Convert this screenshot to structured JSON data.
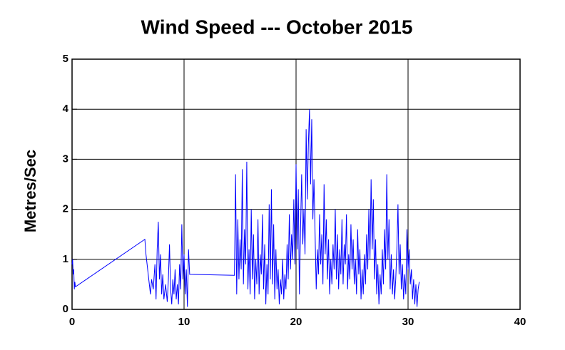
{
  "chart_data": {
    "type": "line",
    "title": "Wind Speed --- October 2015",
    "y_label": "Metres/Sec",
    "x": [
      0,
      0.05,
      0.1,
      0.15,
      0.2,
      0.25,
      0.3,
      6.5,
      6.6,
      6.75,
      6.9,
      7.0,
      7.1,
      7.25,
      7.4,
      7.5,
      7.6,
      7.7,
      7.8,
      7.9,
      8.0,
      8.1,
      8.2,
      8.35,
      8.5,
      8.6,
      8.7,
      8.8,
      8.9,
      9.0,
      9.1,
      9.2,
      9.3,
      9.4,
      9.5,
      9.6,
      9.7,
      9.8,
      9.9,
      10.0,
      10.1,
      10.2,
      10.3,
      10.4,
      10.5,
      14.5,
      14.6,
      14.7,
      14.8,
      14.9,
      15.0,
      15.1,
      15.2,
      15.3,
      15.4,
      15.5,
      15.6,
      15.7,
      15.8,
      15.9,
      16.0,
      16.1,
      16.2,
      16.3,
      16.4,
      16.5,
      16.6,
      16.7,
      16.8,
      16.9,
      17.0,
      17.1,
      17.2,
      17.3,
      17.4,
      17.5,
      17.6,
      17.7,
      17.8,
      17.9,
      18.0,
      18.1,
      18.2,
      18.3,
      18.4,
      18.5,
      18.6,
      18.7,
      18.8,
      18.9,
      19.0,
      19.1,
      19.2,
      19.3,
      19.4,
      19.5,
      19.6,
      19.7,
      19.8,
      19.9,
      20.0,
      20.1,
      20.2,
      20.3,
      20.4,
      20.5,
      20.6,
      20.7,
      20.8,
      20.9,
      21.0,
      21.1,
      21.2,
      21.3,
      21.4,
      21.5,
      21.6,
      21.7,
      21.8,
      21.9,
      22.0,
      22.1,
      22.2,
      22.3,
      22.4,
      22.5,
      22.6,
      22.7,
      22.8,
      22.9,
      23.0,
      23.1,
      23.2,
      23.3,
      23.4,
      23.5,
      23.6,
      23.7,
      23.8,
      23.9,
      24.0,
      24.1,
      24.2,
      24.3,
      24.4,
      24.5,
      24.6,
      24.7,
      24.8,
      24.9,
      25.0,
      25.1,
      25.2,
      25.3,
      25.4,
      25.5,
      25.6,
      25.7,
      25.8,
      25.9,
      26.0,
      26.1,
      26.2,
      26.3,
      26.4,
      26.5,
      26.6,
      26.7,
      26.8,
      26.9,
      27.0,
      27.1,
      27.2,
      27.3,
      27.4,
      27.5,
      27.6,
      27.7,
      27.8,
      27.9,
      28.0,
      28.1,
      28.2,
      28.3,
      28.4,
      28.5,
      28.6,
      28.7,
      28.8,
      28.9,
      29.0,
      29.1,
      29.2,
      29.3,
      29.4,
      29.5,
      29.6,
      29.7,
      29.8,
      29.9,
      30.0,
      30.1,
      30.2,
      30.3,
      30.4,
      30.5,
      30.6,
      30.7,
      30.8,
      30.9,
      31.0
    ],
    "series": [
      {
        "name": "Wind Speed",
        "color": "#0000ff",
        "values": [
          0.9,
          1.0,
          0.7,
          0.8,
          0.4,
          0.55,
          0.45,
          1.4,
          1.1,
          0.8,
          0.5,
          0.3,
          0.6,
          0.4,
          0.9,
          0.2,
          1.2,
          1.75,
          0.6,
          1.1,
          0.3,
          0.7,
          0.2,
          0.5,
          0.15,
          0.6,
          1.3,
          0.4,
          0.1,
          0.6,
          0.3,
          0.8,
          0.2,
          0.5,
          0.1,
          0.9,
          0.4,
          1.7,
          0.6,
          1.1,
          0.3,
          0.8,
          0.05,
          1.2,
          0.7,
          0.68,
          2.7,
          0.3,
          1.8,
          0.6,
          1.4,
          0.8,
          2.8,
          0.5,
          1.6,
          0.9,
          2.95,
          0.4,
          1.2,
          0.3,
          2.0,
          0.6,
          1.5,
          0.2,
          1.0,
          0.5,
          1.8,
          0.3,
          1.1,
          0.7,
          1.9,
          0.4,
          1.3,
          0.1,
          0.9,
          0.3,
          2.1,
          0.6,
          2.4,
          0.5,
          1.7,
          0.2,
          1.2,
          0.4,
          0.8,
          0.1,
          0.6,
          0.3,
          1.0,
          0.2,
          0.7,
          0.4,
          1.3,
          0.6,
          1.9,
          0.8,
          1.5,
          1.0,
          2.2,
          0.9,
          2.9,
          1.2,
          2.4,
          0.3,
          1.6,
          2.7,
          1.3,
          2.0,
          1.1,
          3.6,
          2.2,
          3.3,
          4.0,
          2.5,
          3.8,
          1.8,
          2.6,
          1.5,
          0.4,
          1.2,
          0.7,
          1.9,
          0.9,
          1.5,
          0.5,
          2.5,
          1.1,
          1.8,
          0.6,
          1.4,
          0.3,
          1.0,
          0.5,
          1.3,
          0.8,
          2.0,
          0.6,
          1.5,
          0.4,
          1.2,
          0.7,
          1.8,
          0.5,
          1.3,
          0.9,
          1.9,
          0.4,
          1.1,
          0.6,
          1.7,
          0.8,
          1.4,
          0.5,
          1.0,
          0.3,
          1.6,
          0.7,
          1.2,
          0.2,
          0.8,
          0.3,
          1.1,
          0.5,
          1.5,
          0.8,
          2.0,
          1.0,
          2.6,
          1.2,
          2.2,
          0.6,
          1.4,
          0.3,
          0.9,
          0.1,
          0.7,
          0.3,
          1.2,
          0.5,
          1.6,
          0.8,
          2.7,
          1.0,
          1.8,
          0.4,
          1.1,
          0.3,
          0.8,
          0.2,
          0.6,
          1.2,
          2.1,
          0.7,
          1.3,
          0.4,
          0.9,
          0.2,
          0.7,
          0.3,
          1.6,
          0.8,
          1.2,
          0.5,
          0.8,
          0.2,
          0.6,
          0.1,
          0.5,
          0.05,
          0.4,
          0.55
        ]
      }
    ],
    "xlim": [
      0,
      40
    ],
    "xticks": [
      0,
      10,
      20,
      30,
      40
    ],
    "ylim": [
      0,
      5
    ],
    "yticks": [
      0,
      1,
      2,
      3,
      4,
      5
    ],
    "grid": true
  }
}
